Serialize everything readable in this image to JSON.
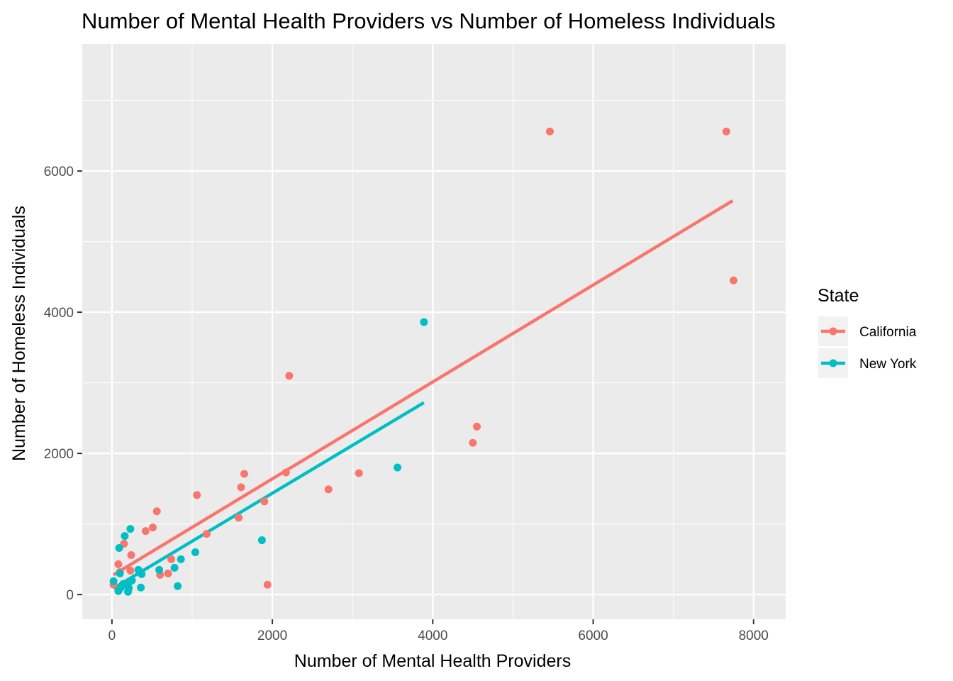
{
  "chart_data": {
    "type": "scatter",
    "title": "Number of Mental Health Providers vs Number of Homeless Individuals",
    "xlabel": "Number of Mental Health Providers",
    "ylabel": "Number of Homeless Individuals",
    "xlim": [
      -370,
      8400
    ],
    "ylim": [
      -350,
      7800
    ],
    "x_ticks": [
      0,
      2000,
      4000,
      6000,
      8000
    ],
    "y_ticks": [
      0,
      2000,
      4000,
      6000
    ],
    "x_tick_labels": [
      "0",
      "2000",
      "4000",
      "6000",
      "8000"
    ],
    "y_tick_labels": [
      "0",
      "2000",
      "4000",
      "6000"
    ],
    "grid": true,
    "legend": {
      "title": "State",
      "position": "right",
      "entries": [
        "California",
        "New York"
      ]
    },
    "series": [
      {
        "name": "California",
        "color": "#F8766D",
        "trend": [
          [
            20,
            280
          ],
          [
            7740,
            5580
          ]
        ],
        "points": [
          [
            20,
            140
          ],
          [
            80,
            430
          ],
          [
            100,
            320
          ],
          [
            150,
            720
          ],
          [
            230,
            340
          ],
          [
            240,
            560
          ],
          [
            420,
            900
          ],
          [
            510,
            950
          ],
          [
            560,
            1180
          ],
          [
            600,
            280
          ],
          [
            700,
            300
          ],
          [
            740,
            500
          ],
          [
            1060,
            1410
          ],
          [
            1180,
            860
          ],
          [
            1580,
            1090
          ],
          [
            1610,
            1520
          ],
          [
            1650,
            1710
          ],
          [
            1900,
            1320
          ],
          [
            1940,
            140
          ],
          [
            2170,
            1730
          ],
          [
            2210,
            3100
          ],
          [
            2700,
            1490
          ],
          [
            3080,
            1720
          ],
          [
            4500,
            2150
          ],
          [
            4550,
            2380
          ],
          [
            5460,
            6560
          ],
          [
            7660,
            6560
          ],
          [
            7750,
            4450
          ]
        ]
      },
      {
        "name": "New York",
        "color": "#00BFC4",
        "trend": [
          [
            20,
            90
          ],
          [
            3890,
            2720
          ]
        ],
        "points": [
          [
            20,
            190
          ],
          [
            80,
            50
          ],
          [
            90,
            660
          ],
          [
            100,
            300
          ],
          [
            110,
            100
          ],
          [
            140,
            150
          ],
          [
            160,
            830
          ],
          [
            190,
            130
          ],
          [
            200,
            40
          ],
          [
            210,
            90
          ],
          [
            220,
            180
          ],
          [
            230,
            930
          ],
          [
            250,
            200
          ],
          [
            330,
            350
          ],
          [
            360,
            100
          ],
          [
            370,
            290
          ],
          [
            590,
            350
          ],
          [
            780,
            380
          ],
          [
            820,
            120
          ],
          [
            860,
            500
          ],
          [
            1040,
            600
          ],
          [
            1870,
            770
          ],
          [
            3560,
            1800
          ],
          [
            3890,
            3860
          ]
        ]
      }
    ]
  }
}
